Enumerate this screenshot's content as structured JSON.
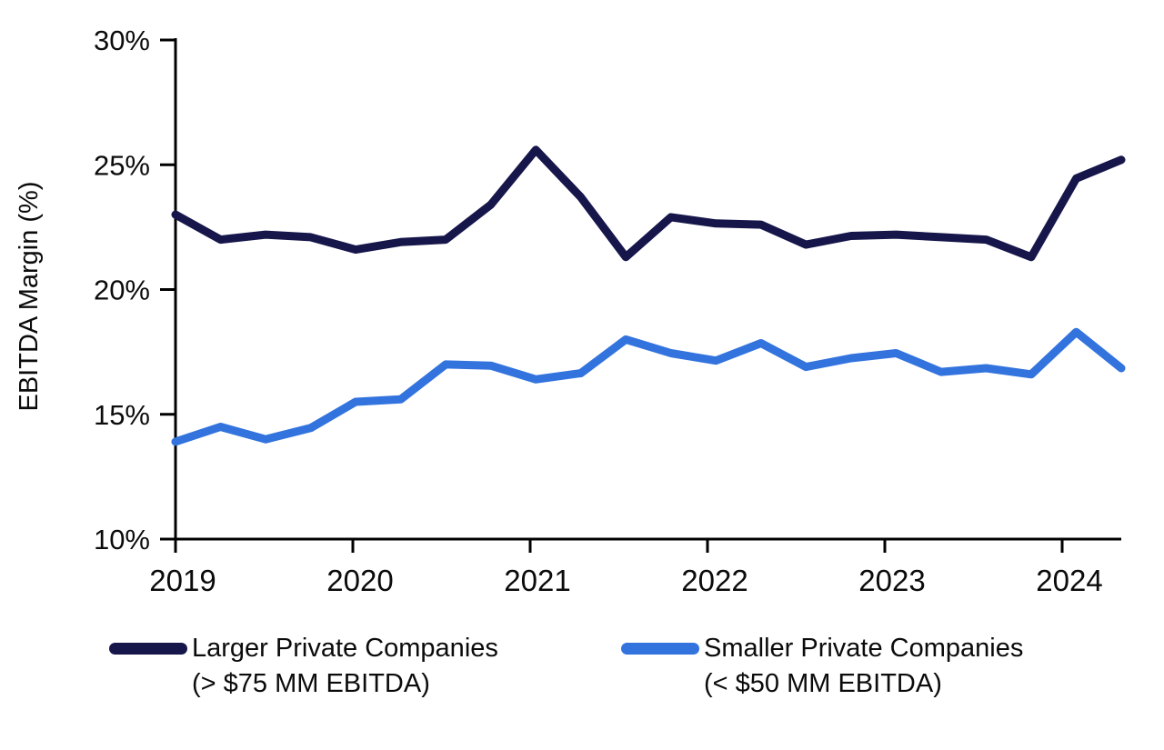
{
  "y_axis_title": "EBITDA Margin (%)",
  "legend": {
    "items": [
      {
        "label": "Larger Private Companies",
        "sublabel": "(> $75 MM EBITDA)"
      },
      {
        "label": "Smaller Private Companies",
        "sublabel": "(< $50 MM EBITDA)"
      }
    ]
  },
  "chart_data": {
    "type": "line",
    "title": "",
    "xlabel": "",
    "ylabel": "EBITDA Margin (%)",
    "x": [
      "2019 Q1",
      "2019 Q2",
      "2019 Q3",
      "2019 Q4",
      "2020 Q1",
      "2020 Q2",
      "2020 Q3",
      "2020 Q4",
      "2021 Q1",
      "2021 Q2",
      "2021 Q3",
      "2021 Q4",
      "2022 Q1",
      "2022 Q2",
      "2022 Q3",
      "2022 Q4",
      "2023 Q1",
      "2023 Q2",
      "2023 Q3",
      "2023 Q4",
      "2024 Q1",
      "2024 Q2"
    ],
    "x_tick_labels": [
      "2019",
      "2020",
      "2021",
      "2022",
      "2023",
      "2024"
    ],
    "y_ticks": [
      10,
      15,
      20,
      25,
      30
    ],
    "y_tick_labels": [
      "10%",
      "15%",
      "20%",
      "25%",
      "30%"
    ],
    "ylim": [
      10,
      30
    ],
    "grid": false,
    "legend_position": "bottom",
    "axis_color": "#000000",
    "series": [
      {
        "name": "Larger Private Companies",
        "qualifier": "(> $75 MM EBITDA)",
        "color": "#16164B",
        "values": [
          23.0,
          22.0,
          22.2,
          22.1,
          21.6,
          21.9,
          22.0,
          23.4,
          25.6,
          23.7,
          21.3,
          22.9,
          22.65,
          22.6,
          21.8,
          22.15,
          22.2,
          22.1,
          22.0,
          21.3,
          24.45,
          25.2
        ]
      },
      {
        "name": "Smaller Private Companies",
        "qualifier": "(< $50 MM EBITDA)",
        "color": "#3273DE",
        "values": [
          13.9,
          14.5,
          14.0,
          14.45,
          15.5,
          15.6,
          17.0,
          16.95,
          16.4,
          16.65,
          18.0,
          17.45,
          17.15,
          17.85,
          16.9,
          17.25,
          17.45,
          16.7,
          16.85,
          16.6,
          18.3,
          16.85
        ]
      }
    ]
  }
}
